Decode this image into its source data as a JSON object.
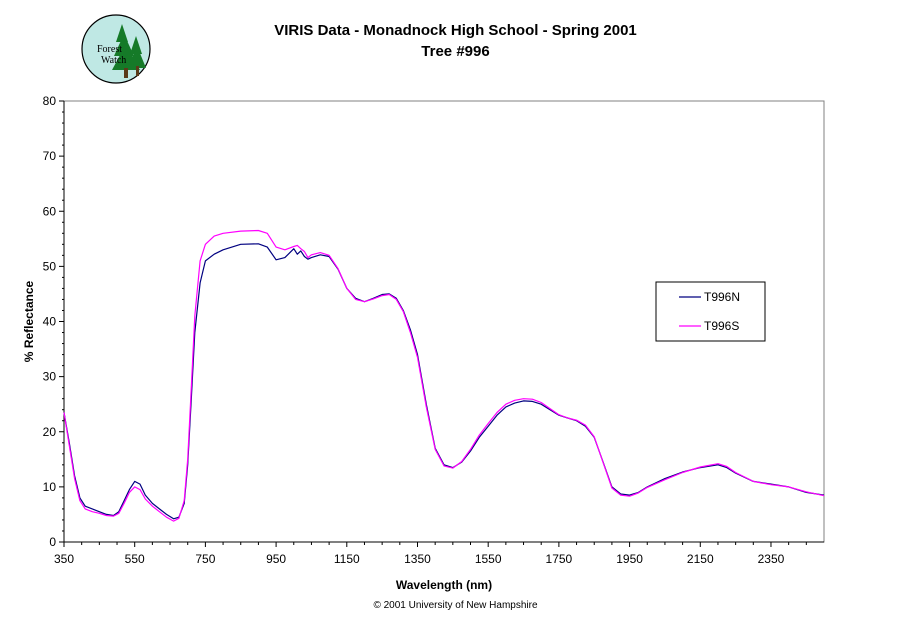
{
  "logo": {
    "line1": "Forest",
    "line2": "Watch"
  },
  "footer": {
    "copyright": "© 2001 University of New Hampshire"
  },
  "chart_data": {
    "type": "line",
    "title": "VIRIS Data -  Monadnock High School - Spring 2001",
    "subtitle": "Tree #996",
    "xlabel": "Wavelength (nm)",
    "ylabel": "% Reflectance",
    "xlim": [
      350,
      2500
    ],
    "ylim": [
      0,
      80
    ],
    "xticks": [
      350,
      550,
      750,
      950,
      1150,
      1350,
      1550,
      1750,
      1950,
      2150,
      2350
    ],
    "yticks": [
      0,
      10,
      20,
      30,
      40,
      50,
      60,
      70,
      80
    ],
    "grid": false,
    "legend_position": "right",
    "series": [
      {
        "name": "T996N",
        "color": "#000080",
        "x": [
          350,
          365,
          380,
          395,
          410,
          430,
          450,
          470,
          490,
          505,
          520,
          535,
          550,
          565,
          580,
          600,
          620,
          640,
          660,
          675,
          690,
          700,
          710,
          720,
          735,
          750,
          775,
          800,
          850,
          900,
          925,
          950,
          975,
          1000,
          1010,
          1020,
          1030,
          1040,
          1050,
          1075,
          1100,
          1125,
          1150,
          1175,
          1200,
          1225,
          1250,
          1270,
          1290,
          1310,
          1330,
          1350,
          1375,
          1400,
          1425,
          1450,
          1475,
          1500,
          1525,
          1550,
          1575,
          1600,
          1625,
          1650,
          1675,
          1700,
          1725,
          1750,
          1775,
          1800,
          1825,
          1850,
          1875,
          1900,
          1925,
          1950,
          1975,
          2000,
          2050,
          2100,
          2150,
          2200,
          2225,
          2250,
          2300,
          2350,
          2400,
          2450,
          2500
        ],
        "y": [
          23.5,
          18,
          12,
          8,
          6.5,
          6,
          5.5,
          5,
          4.8,
          5.5,
          7.5,
          9.5,
          11,
          10.5,
          8.5,
          7,
          6,
          5,
          4.2,
          4.5,
          7,
          14,
          26,
          38,
          47,
          51,
          52.2,
          53,
          54,
          54.1,
          53.5,
          51.2,
          51.6,
          53.2,
          52.2,
          52.8,
          51.8,
          51.3,
          51.6,
          52.1,
          51.8,
          49.5,
          46,
          44.2,
          43.6,
          44.2,
          44.9,
          45,
          44.2,
          42,
          38.5,
          34,
          25,
          17,
          14,
          13.5,
          14.5,
          16.5,
          19,
          21,
          23,
          24.5,
          25.2,
          25.6,
          25.5,
          25,
          24,
          23,
          22.5,
          22,
          21,
          19,
          14.5,
          10,
          8.7,
          8.5,
          9,
          10,
          11.5,
          12.7,
          13.5,
          14,
          13.5,
          12.5,
          11,
          10.5,
          10,
          9,
          8.5
        ]
      },
      {
        "name": "T996S",
        "color": "#ff00ff",
        "x": [
          350,
          365,
          380,
          395,
          410,
          430,
          450,
          470,
          490,
          505,
          520,
          535,
          550,
          565,
          580,
          600,
          620,
          640,
          660,
          675,
          690,
          700,
          710,
          720,
          735,
          750,
          775,
          800,
          850,
          900,
          925,
          950,
          975,
          1000,
          1010,
          1020,
          1030,
          1040,
          1050,
          1075,
          1100,
          1125,
          1150,
          1175,
          1200,
          1225,
          1250,
          1270,
          1290,
          1310,
          1330,
          1350,
          1375,
          1400,
          1425,
          1450,
          1475,
          1500,
          1525,
          1550,
          1575,
          1600,
          1625,
          1650,
          1675,
          1700,
          1725,
          1750,
          1775,
          1800,
          1825,
          1850,
          1875,
          1900,
          1925,
          1950,
          1975,
          2000,
          2050,
          2100,
          2150,
          2200,
          2225,
          2250,
          2300,
          2350,
          2400,
          2450,
          2500
        ],
        "y": [
          23.5,
          17.5,
          11.5,
          7.5,
          6,
          5.5,
          5.2,
          4.8,
          4.7,
          5.2,
          7,
          9,
          10,
          9.5,
          7.8,
          6.5,
          5.5,
          4.5,
          3.8,
          4.3,
          7.5,
          15,
          28,
          41,
          51,
          54,
          55.5,
          56,
          56.4,
          56.5,
          56,
          53.5,
          53,
          53.6,
          53.8,
          53.2,
          52.7,
          51.6,
          52.1,
          52.5,
          52,
          49.6,
          46,
          44,
          43.6,
          44.1,
          44.7,
          44.9,
          44,
          41.8,
          38,
          33.5,
          24.5,
          16.8,
          13.8,
          13.4,
          14.6,
          16.8,
          19.4,
          21.5,
          23.5,
          25,
          25.7,
          26,
          25.9,
          25.3,
          24.2,
          23.1,
          22.5,
          22.1,
          21.2,
          19.1,
          14.4,
          9.8,
          8.5,
          8.3,
          8.9,
          9.9,
          11.3,
          12.6,
          13.6,
          14.2,
          13.7,
          12.6,
          11,
          10.4,
          10,
          9.1,
          8.4
        ]
      }
    ]
  }
}
